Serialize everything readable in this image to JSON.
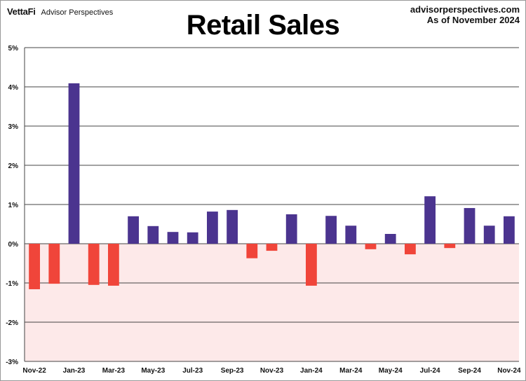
{
  "header": {
    "brand": "VettaFi",
    "brand_sub": "Advisor Perspectives",
    "site": "advisorperspectives.com",
    "as_of": "As of November 2024"
  },
  "chart_data": {
    "type": "bar",
    "title": "Retail Sales",
    "xlabel": "",
    "ylabel": "",
    "ylim": [
      -3,
      5
    ],
    "yticks": [
      5,
      4,
      3,
      2,
      1,
      0,
      -1,
      -2,
      -3
    ],
    "ytick_labels": [
      "5%",
      "4%",
      "3%",
      "2%",
      "1%",
      "0%",
      "-1%",
      "-2%",
      "-3%"
    ],
    "grid": true,
    "categories": [
      "Nov-22",
      "Dec-22",
      "Jan-23",
      "Feb-23",
      "Mar-23",
      "Apr-23",
      "May-23",
      "Jun-23",
      "Jul-23",
      "Aug-23",
      "Sep-23",
      "Oct-23",
      "Nov-23",
      "Dec-23",
      "Jan-24",
      "Feb-24",
      "Mar-24",
      "Apr-24",
      "May-24",
      "Jun-24",
      "Jul-24",
      "Aug-24",
      "Sep-24",
      "Oct-24",
      "Nov-24"
    ],
    "xtick_labels": [
      "Nov-22",
      "Jan-23",
      "Mar-23",
      "May-23",
      "Jul-23",
      "Sep-23",
      "Nov-23",
      "Jan-24",
      "Mar-24",
      "May-24",
      "Jul-24",
      "Sep-24",
      "Nov-24"
    ],
    "values": [
      -1.16,
      -1.02,
      4.09,
      -1.05,
      -1.07,
      0.7,
      0.45,
      0.3,
      0.29,
      0.82,
      0.86,
      -0.37,
      -0.18,
      0.75,
      -1.07,
      0.71,
      0.46,
      -0.14,
      0.25,
      -0.27,
      1.21,
      -0.11,
      0.91,
      0.46,
      0.7
    ],
    "colors": {
      "positive": "#4b348f",
      "negative": "#f0453a",
      "negative_zone": "#fde9e9",
      "grid": "#444444"
    }
  }
}
